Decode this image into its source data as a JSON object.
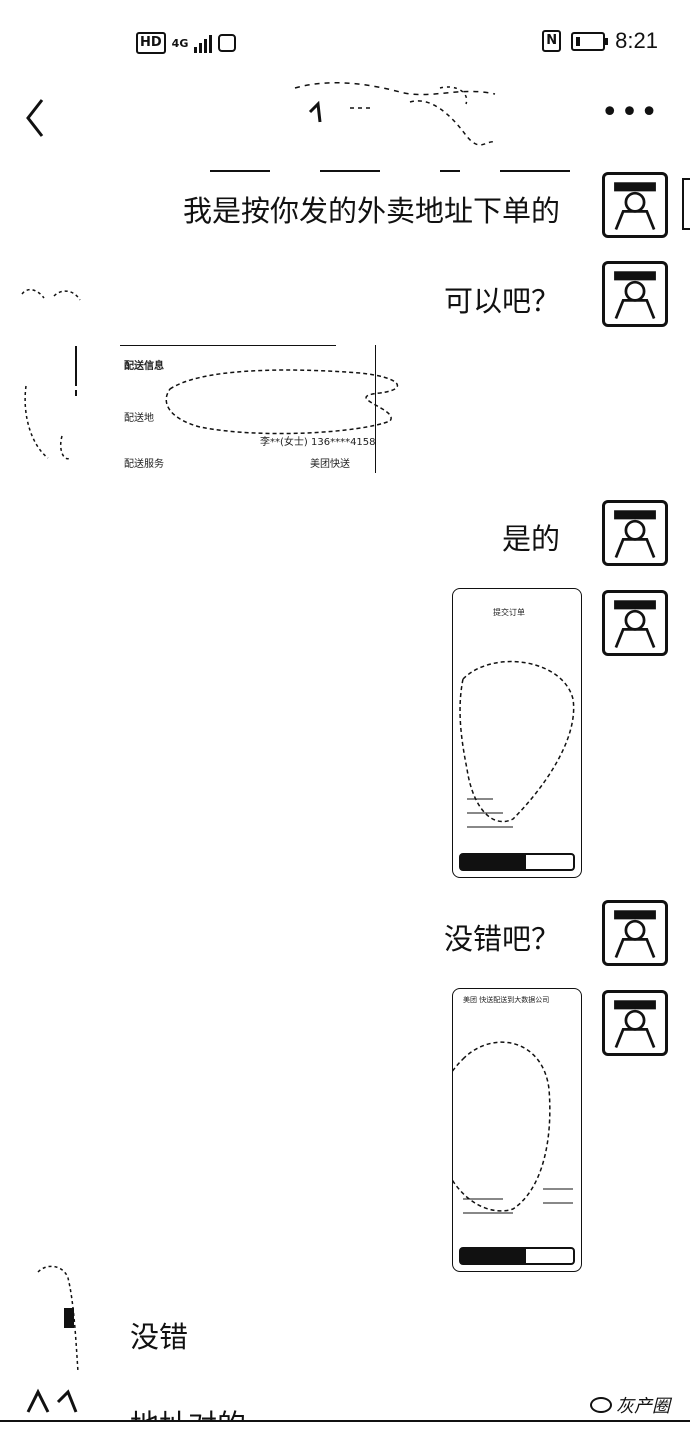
{
  "status_bar": {
    "hd": "HD",
    "network": "4G",
    "nfc": "N",
    "time": "8:21"
  },
  "nav": {
    "back_icon": "chevron-left-icon",
    "more": "•••"
  },
  "messages": [
    {
      "side": "right",
      "text": "我是按你发的外卖地址下单的"
    },
    {
      "side": "right",
      "text": "可以吧？"
    },
    {
      "side": "left",
      "type": "image-card",
      "delivery_info": "配送信息",
      "row2": "配送地",
      "recipient": "李**(女士) 136****4158",
      "service_label": "配送服务",
      "service_value": "美团快送"
    },
    {
      "side": "right",
      "text": "是的"
    },
    {
      "side": "right",
      "type": "screenshot",
      "header": "提交订单"
    },
    {
      "side": "right",
      "text": "没错吧？"
    },
    {
      "side": "right",
      "type": "screenshot",
      "header": "美团 快送配送到大数据公司"
    },
    {
      "side": "left",
      "text": "没错"
    },
    {
      "side": "left",
      "text": "地址对的"
    }
  ],
  "watermark": {
    "text": "灰产圈"
  }
}
